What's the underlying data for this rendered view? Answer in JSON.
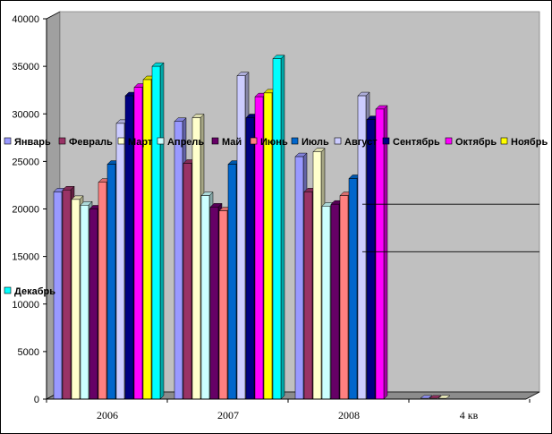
{
  "chart_data": {
    "type": "bar",
    "categories": [
      "2006",
      "2007",
      "2008",
      "4 кв"
    ],
    "ylim": [
      0,
      40000
    ],
    "y_ticks": [
      0,
      5000,
      10000,
      15000,
      20000,
      25000,
      30000,
      35000,
      40000
    ],
    "grid": false,
    "legend_position": "overlaid",
    "series": [
      {
        "name": "Январь",
        "color": "#9999ff",
        "values": [
          21800,
          29200,
          25500,
          0
        ]
      },
      {
        "name": "Февраль",
        "color": "#993366",
        "values": [
          22000,
          24800,
          21800,
          0
        ]
      },
      {
        "name": "Март",
        "color": "#ffffcc",
        "values": [
          21000,
          29600,
          26000,
          0
        ]
      },
      {
        "name": "Апрель",
        "color": "#ccffff",
        "values": [
          20400,
          21400,
          20300,
          0
        ]
      },
      {
        "name": "Май",
        "color": "#660066",
        "values": [
          20000,
          20200,
          20500,
          0
        ]
      },
      {
        "name": "Июнь",
        "color": "#ff8080",
        "values": [
          22800,
          19800,
          21400,
          0
        ]
      },
      {
        "name": "Июль",
        "color": "#0066cc",
        "values": [
          24700,
          24700,
          23200,
          0
        ]
      },
      {
        "name": "Август",
        "color": "#ccccff",
        "values": [
          29000,
          34000,
          31900,
          0
        ]
      },
      {
        "name": "Сентябрь",
        "color": "#000080",
        "values": [
          31900,
          29600,
          29400,
          0
        ]
      },
      {
        "name": "Октябрь",
        "color": "#ff00ff",
        "values": [
          32800,
          31800,
          30500,
          0
        ]
      },
      {
        "name": "Ноябрь",
        "color": "#ffff00",
        "values": [
          33600,
          32200,
          0,
          0
        ]
      },
      {
        "name": "Декабрь",
        "color": "#00ffff",
        "values": [
          35000,
          35800,
          0,
          0
        ]
      }
    ]
  }
}
